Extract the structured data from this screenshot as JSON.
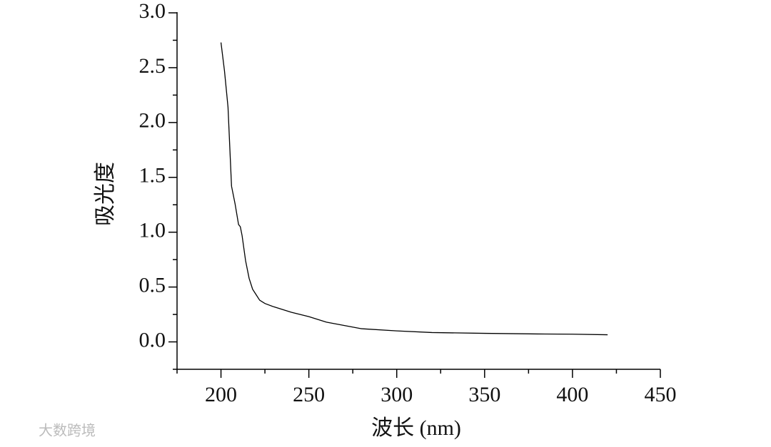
{
  "chart_data": {
    "type": "line",
    "xlabel": "波长 (nm)",
    "ylabel": "吸光度",
    "watermark": "大数跨境",
    "x": [
      200,
      202,
      204,
      206,
      208,
      210,
      211,
      212,
      214,
      216,
      218,
      220,
      222,
      225,
      230,
      240,
      250,
      260,
      270,
      280,
      300,
      320,
      350,
      380,
      400,
      420
    ],
    "series": [
      {
        "color": "#000000",
        "values": [
          2.73,
          2.47,
          2.14,
          1.42,
          1.26,
          1.07,
          1.05,
          0.97,
          0.74,
          0.58,
          0.48,
          0.43,
          0.38,
          0.35,
          0.32,
          0.27,
          0.23,
          0.18,
          0.15,
          0.12,
          0.1,
          0.085,
          0.078,
          0.072,
          0.07,
          0.065
        ]
      }
    ],
    "xlim": [
      175,
      450
    ],
    "xticks": [
      200,
      250,
      300,
      350,
      400,
      450
    ],
    "xminorticks": [
      175,
      225,
      275,
      325,
      375,
      425
    ],
    "ylim": [
      -0.25,
      3.0
    ],
    "yticks": [
      {
        "value": 0,
        "label": "0.0"
      },
      {
        "value": 0.5,
        "label": "0.5"
      },
      {
        "value": 1,
        "label": "1.0"
      },
      {
        "value": 1.5,
        "label": "1.5"
      },
      {
        "value": 2,
        "label": "2.0"
      },
      {
        "value": 2.5,
        "label": "2.5"
      },
      {
        "value": 3,
        "label": "3.0"
      }
    ],
    "yminorticks": [
      -0.25,
      0.25,
      0.75,
      1.25,
      1.75,
      2.25,
      2.75
    ],
    "grid": false
  }
}
